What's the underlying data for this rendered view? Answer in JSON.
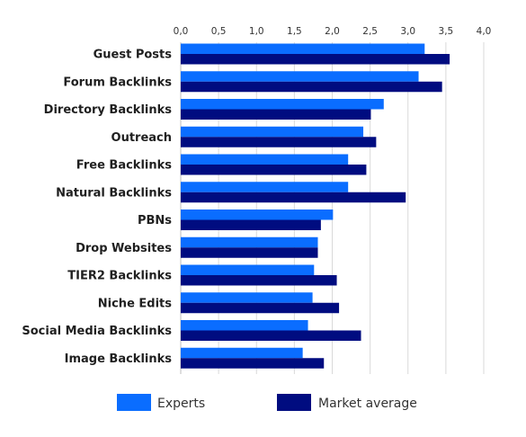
{
  "colors": {
    "experts": "#0a6dff",
    "market": "#000c80"
  },
  "chart_data": {
    "type": "bar",
    "orientation": "horizontal",
    "categories": [
      "Guest Posts",
      "Forum Backlinks",
      "Directory Backlinks",
      "Outreach",
      "Free Backlinks",
      "Natural Backlinks",
      "PBNs",
      "Drop Websites",
      "TIER2 Backlinks",
      "Niche Edits",
      "Social Media Backlinks",
      "Image Backlinks"
    ],
    "series": [
      {
        "name": "Experts",
        "color": "#0a6dff",
        "values": [
          3.22,
          3.14,
          2.68,
          2.41,
          2.21,
          2.21,
          2.01,
          1.81,
          1.76,
          1.74,
          1.68,
          1.61
        ]
      },
      {
        "name": "Market average",
        "color": "#000c80",
        "values": [
          3.55,
          3.45,
          2.51,
          2.58,
          2.45,
          2.97,
          1.85,
          1.81,
          2.06,
          2.09,
          2.38,
          1.89
        ]
      }
    ],
    "xticks": [
      "0,0",
      "0,5",
      "1,0",
      "1,5",
      "2,0",
      "2,5",
      "3,0",
      "3,5",
      "4,0"
    ],
    "xlim": [
      0,
      4
    ],
    "grid": true,
    "legend_position": "bottom",
    "title": "",
    "xlabel": "",
    "ylabel": ""
  }
}
